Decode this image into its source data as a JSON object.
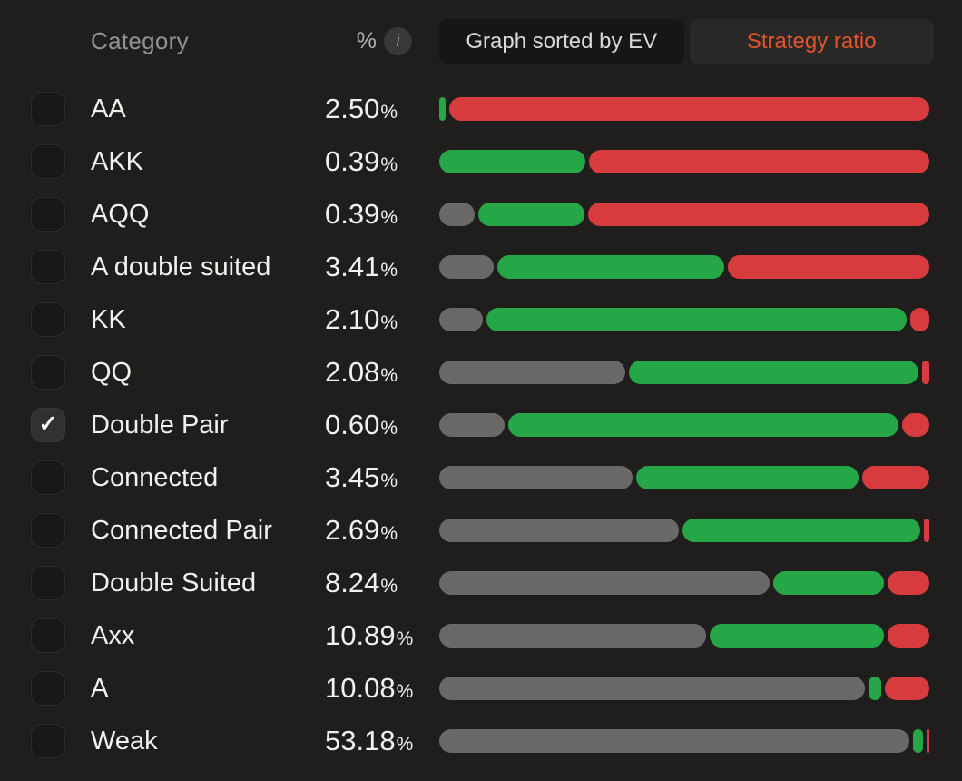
{
  "header": {
    "category_label": "Category",
    "percent_label": "%",
    "info_icon": "i",
    "buttons": [
      {
        "label": "Graph sorted by EV",
        "active": true
      },
      {
        "label": "Strategy ratio",
        "active": false
      }
    ]
  },
  "icons": {
    "check": "✓"
  },
  "percent_suffix": "%",
  "colors": {
    "gray": "#6b6967",
    "green": "#26a747",
    "red": "#d83b3e",
    "accent_orange": "#e2542a",
    "background": "#201e1d"
  },
  "chart_data": {
    "type": "bar",
    "note": "horizontal strategy-ratio bars; segment values are percent of bar width",
    "categories": [
      "AA",
      "AKK",
      "AQQ",
      "A double suited",
      "KK",
      "QQ",
      "Double Pair",
      "Connected",
      "Connected Pair",
      "Double Suited",
      "Axx",
      "A",
      "Weak"
    ],
    "series": [
      {
        "name": "gray",
        "values": [
          0,
          0,
          7.4,
          11.3,
          9.0,
          38.6,
          13.6,
          40.0,
          49.7,
          68.4,
          55.3,
          86.4,
          97.4
        ]
      },
      {
        "name": "green",
        "values": [
          1.3,
          30.0,
          22.0,
          46.9,
          87.0,
          59.9,
          80.8,
          46.0,
          49.1,
          22.9,
          36.0,
          2.5,
          2.0
        ]
      },
      {
        "name": "red",
        "values": [
          98.7,
          70.0,
          70.6,
          41.8,
          4.0,
          1.5,
          5.6,
          14.0,
          1.2,
          8.7,
          8.7,
          9.1,
          0.6
        ]
      }
    ]
  },
  "rows": [
    {
      "label": "AA",
      "value": "2.50",
      "checked": false,
      "segments": [
        {
          "color": "green",
          "pct": 1.3
        },
        {
          "color": "red",
          "pct": 98.7
        }
      ]
    },
    {
      "label": "AKK",
      "value": "0.39",
      "checked": false,
      "segments": [
        {
          "color": "green",
          "pct": 30.0
        },
        {
          "color": "red",
          "pct": 70.0
        }
      ]
    },
    {
      "label": "AQQ",
      "value": "0.39",
      "checked": false,
      "segments": [
        {
          "color": "gray",
          "pct": 7.4
        },
        {
          "color": "green",
          "pct": 22.0
        },
        {
          "color": "red",
          "pct": 70.6
        }
      ]
    },
    {
      "label": "A double suited",
      "value": "3.41",
      "checked": false,
      "segments": [
        {
          "color": "gray",
          "pct": 11.3
        },
        {
          "color": "green",
          "pct": 46.9
        },
        {
          "color": "red",
          "pct": 41.8
        }
      ]
    },
    {
      "label": "KK",
      "value": "2.10",
      "checked": false,
      "segments": [
        {
          "color": "gray",
          "pct": 9.0
        },
        {
          "color": "green",
          "pct": 87.0
        },
        {
          "color": "red",
          "pct": 4.0
        }
      ]
    },
    {
      "label": "QQ",
      "value": "2.08",
      "checked": false,
      "segments": [
        {
          "color": "gray",
          "pct": 38.6
        },
        {
          "color": "green",
          "pct": 59.9
        },
        {
          "color": "red",
          "pct": 1.5
        }
      ]
    },
    {
      "label": "Double Pair",
      "value": "0.60",
      "checked": true,
      "segments": [
        {
          "color": "gray",
          "pct": 13.6
        },
        {
          "color": "green",
          "pct": 80.8
        },
        {
          "color": "red",
          "pct": 5.6
        }
      ]
    },
    {
      "label": "Connected",
      "value": "3.45",
      "checked": false,
      "segments": [
        {
          "color": "gray",
          "pct": 40.0
        },
        {
          "color": "green",
          "pct": 46.0
        },
        {
          "color": "red",
          "pct": 14.0
        }
      ]
    },
    {
      "label": "Connected Pair",
      "value": "2.69",
      "checked": false,
      "segments": [
        {
          "color": "gray",
          "pct": 49.7
        },
        {
          "color": "green",
          "pct": 49.1
        },
        {
          "color": "red",
          "pct": 1.2
        }
      ]
    },
    {
      "label": "Double Suited",
      "value": "8.24",
      "checked": false,
      "segments": [
        {
          "color": "gray",
          "pct": 68.4
        },
        {
          "color": "green",
          "pct": 22.9
        },
        {
          "color": "red",
          "pct": 8.7
        }
      ]
    },
    {
      "label": "Axx",
      "value": "10.89",
      "checked": false,
      "segments": [
        {
          "color": "gray",
          "pct": 55.3
        },
        {
          "color": "green",
          "pct": 36.0
        },
        {
          "color": "red",
          "pct": 8.7
        }
      ]
    },
    {
      "label": "A",
      "value": "10.08",
      "checked": false,
      "segments": [
        {
          "color": "gray",
          "pct": 86.4
        },
        {
          "color": "green",
          "pct": 2.5
        },
        {
          "color": "red",
          "pct": 9.1
        }
      ]
    },
    {
      "label": "Weak",
      "value": "53.18",
      "checked": false,
      "segments": [
        {
          "color": "gray",
          "pct": 97.4
        },
        {
          "color": "green",
          "pct": 2.0
        },
        {
          "color": "red",
          "pct": 0.6
        }
      ]
    }
  ]
}
